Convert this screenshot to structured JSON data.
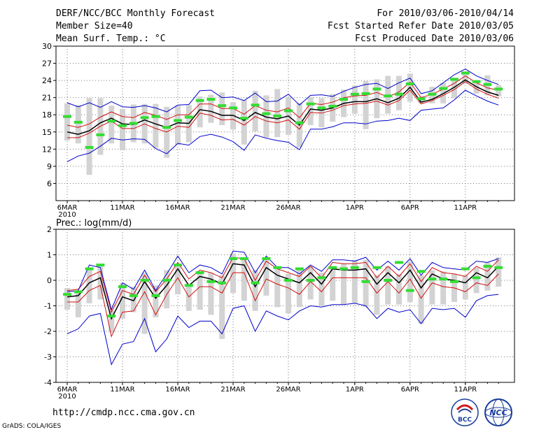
{
  "header": {
    "title": "DERF/NCC/BCC Monthly Forecast",
    "member": "Member Size=40",
    "variable": "Mean Surf. Temp.: °C",
    "period": "For 2010/03/06-2010/04/14",
    "started": "Fcst Started Refer Date 2010/03/05",
    "produced": "Fcst Produced Date 2010/03/06"
  },
  "footer": {
    "url": "http://cmdp.ncc.cma.gov.cn",
    "grads": "GrADS: COLA/IGES",
    "logo_left": "BCC",
    "logo_right": "NCC"
  },
  "colors": {
    "mean": "#000000",
    "spread": "#d01010",
    "envelope": "#0000cc",
    "box": "#d3d3d3",
    "marker": "#33dd33"
  },
  "chart_data": [
    {
      "type": "line",
      "title": "Mean Surf. Temp.: °C",
      "xlabel": "",
      "ylabel": "",
      "ylim": [
        3,
        30
      ],
      "yticks": [
        6,
        9,
        12,
        15,
        18,
        21,
        24,
        27,
        30
      ],
      "grid": true,
      "xticks": [
        {
          "day": 1,
          "label": "6MAR",
          "sub": "2010"
        },
        {
          "day": 6,
          "label": "11MAR"
        },
        {
          "day": 11,
          "label": "16MAR"
        },
        {
          "day": 16,
          "label": "21MAR"
        },
        {
          "day": 21,
          "label": "26MAR"
        },
        {
          "day": 27,
          "label": "1APR"
        },
        {
          "day": 32,
          "label": "6APR"
        },
        {
          "day": 37,
          "label": "11APR"
        }
      ],
      "x": [
        1,
        2,
        3,
        4,
        5,
        6,
        7,
        8,
        9,
        10,
        11,
        12,
        13,
        14,
        15,
        16,
        17,
        18,
        19,
        20,
        21,
        22,
        23,
        24,
        25,
        26,
        27,
        28,
        29,
        30,
        31,
        32,
        33,
        34,
        35,
        36,
        37,
        38,
        39,
        40
      ],
      "series": [
        {
          "name": "ensemble mean",
          "values": [
            15.0,
            14.6,
            15.2,
            16.6,
            17.4,
            16.4,
            16.3,
            17.1,
            16.4,
            15.8,
            16.6,
            16.5,
            18.9,
            18.6,
            17.9,
            17.9,
            17.0,
            18.4,
            17.6,
            17.3,
            17.8,
            16.2,
            19.0,
            18.8,
            19.2,
            20.0,
            20.3,
            20.3,
            20.8,
            20.1,
            20.9,
            22.8,
            20.2,
            20.7,
            21.7,
            22.8,
            24.1,
            22.9,
            22.0,
            21.4
          ]
        },
        {
          "name": "upper spread",
          "values": [
            16.2,
            15.8,
            16.4,
            17.6,
            18.5,
            17.7,
            17.5,
            18.4,
            17.9,
            17.2,
            18.0,
            18.0,
            19.9,
            19.9,
            19.1,
            19.1,
            18.1,
            19.6,
            18.8,
            18.5,
            19.2,
            17.5,
            20.0,
            19.8,
            20.2,
            21.0,
            21.3,
            21.4,
            21.9,
            21.1,
            22.0,
            23.7,
            21.0,
            21.6,
            22.5,
            23.5,
            24.8,
            23.6,
            22.7,
            22.3
          ]
        },
        {
          "name": "lower spread",
          "values": [
            14.0,
            14.0,
            14.8,
            16.0,
            16.9,
            15.6,
            15.6,
            16.4,
            15.6,
            15.0,
            16.0,
            15.8,
            18.3,
            17.9,
            17.1,
            17.2,
            16.2,
            17.7,
            16.9,
            16.6,
            17.1,
            15.5,
            18.4,
            18.3,
            18.8,
            19.6,
            19.9,
            20.0,
            20.4,
            19.7,
            20.5,
            22.3,
            19.9,
            20.5,
            21.4,
            22.4,
            23.8,
            22.5,
            21.6,
            20.9
          ]
        },
        {
          "name": "ensemble max",
          "values": [
            20.1,
            19.4,
            20.1,
            19.3,
            20.3,
            19.4,
            19.3,
            19.6,
            19.2,
            18.5,
            19.7,
            19.8,
            22.2,
            22.3,
            21.0,
            21.1,
            20.5,
            21.8,
            20.3,
            20.4,
            21.6,
            19.7,
            21.4,
            21.5,
            21.2,
            22.1,
            22.8,
            23.3,
            23.5,
            22.6,
            23.6,
            24.4,
            21.7,
            22.2,
            23.6,
            25.0,
            26.0,
            24.8,
            24.0,
            23.3
          ]
        },
        {
          "name": "ensemble min",
          "values": [
            9.8,
            10.8,
            11.3,
            12.5,
            13.9,
            13.6,
            13.8,
            13.7,
            12.1,
            11.2,
            13.0,
            12.7,
            14.2,
            14.6,
            14.1,
            13.3,
            11.8,
            14.5,
            13.9,
            13.5,
            13.2,
            11.9,
            15.5,
            15.5,
            15.9,
            16.6,
            16.6,
            16.4,
            16.9,
            17.0,
            17.4,
            17.0,
            18.8,
            19.0,
            19.2,
            20.6,
            22.3,
            21.3,
            20.4,
            19.7
          ]
        },
        {
          "name": "forecast",
          "values": [
            17.7,
            16.7,
            12.3,
            14.5,
            16.9,
            16.1,
            16.5,
            17.5,
            17.7,
            15.8,
            17.0,
            17.6,
            20.5,
            20.7,
            19.6,
            19.2,
            17.4,
            19.7,
            18.2,
            17.8,
            18.7,
            16.6,
            19.9,
            19.2,
            19.5,
            20.7,
            21.6,
            21.7,
            22.5,
            21.3,
            21.6,
            23.4,
            20.8,
            21.6,
            22.6,
            24.2,
            25.3,
            23.8,
            23.3,
            22.5
          ]
        }
      ],
      "boxes": [
        [
          13.5,
          20.0
        ],
        [
          13.0,
          19.7
        ],
        [
          7.5,
          20.9
        ],
        [
          11.0,
          20.9
        ],
        [
          13.0,
          19.6
        ],
        [
          11.8,
          19.0
        ],
        [
          13.2,
          19.8
        ],
        [
          13.0,
          19.9
        ],
        [
          12.2,
          19.9
        ],
        [
          10.5,
          19.4
        ],
        [
          12.7,
          19.6
        ],
        [
          13.2,
          19.7
        ],
        [
          15.8,
          21.2
        ],
        [
          16.6,
          21.5
        ],
        [
          16.2,
          21.9
        ],
        [
          15.4,
          20.2
        ],
        [
          12.8,
          20.6
        ],
        [
          15.1,
          22.2
        ],
        [
          14.0,
          21.4
        ],
        [
          14.1,
          22.5
        ],
        [
          14.5,
          21.1
        ],
        [
          12.3,
          20.1
        ],
        [
          16.2,
          21.1
        ],
        [
          15.8,
          20.9
        ],
        [
          16.8,
          21.6
        ],
        [
          17.6,
          22.4
        ],
        [
          18.2,
          23.1
        ],
        [
          15.5,
          23.9
        ],
        [
          17.4,
          24.2
        ],
        [
          18.2,
          24.8
        ],
        [
          18.8,
          24.8
        ],
        [
          20.3,
          25.2
        ],
        [
          20.0,
          21.2
        ],
        [
          20.0,
          22.9
        ],
        [
          20.0,
          23.6
        ],
        [
          20.9,
          24.5
        ],
        [
          23.4,
          25.6
        ],
        [
          21.7,
          24.0
        ],
        [
          21.4,
          24.9
        ],
        [
          21.2,
          23.2
        ]
      ]
    },
    {
      "type": "line",
      "title": "Prec.: log(mm/d)",
      "xlabel": "",
      "ylabel": "",
      "ylim": [
        -4,
        2
      ],
      "yticks": [
        -4,
        -3,
        -2,
        -1,
        0,
        1,
        2
      ],
      "grid": true,
      "xticks": [
        {
          "day": 1,
          "label": "6MAR",
          "sub": "2010"
        },
        {
          "day": 6,
          "label": "11MAR"
        },
        {
          "day": 11,
          "label": "16MAR"
        },
        {
          "day": 16,
          "label": "21MAR"
        },
        {
          "day": 21,
          "label": "26MAR"
        },
        {
          "day": 27,
          "label": "1APR"
        },
        {
          "day": 32,
          "label": "6APR"
        },
        {
          "day": 37,
          "label": "11APR"
        }
      ],
      "x": [
        1,
        2,
        3,
        4,
        5,
        6,
        7,
        8,
        9,
        10,
        11,
        12,
        13,
        14,
        15,
        16,
        17,
        18,
        19,
        20,
        21,
        22,
        23,
        24,
        25,
        26,
        27,
        28,
        29,
        30,
        31,
        32,
        33,
        34,
        35,
        36,
        37,
        38,
        39,
        40
      ],
      "series": [
        {
          "name": "ensemble mean",
          "values": [
            -0.65,
            -0.6,
            -0.1,
            0.1,
            -1.5,
            -0.65,
            -0.8,
            -0.05,
            -0.7,
            -0.2,
            0.45,
            -0.2,
            0.15,
            0.05,
            -0.15,
            0.65,
            0.6,
            -0.25,
            0.5,
            0.2,
            0.05,
            -0.1,
            0.3,
            -0.15,
            0.45,
            0.4,
            0.4,
            0.45,
            -0.15,
            0.3,
            -0.1,
            0.4,
            -0.3,
            0.25,
            0.05,
            0.0,
            -0.1,
            0.3,
            0.1,
            0.55
          ]
        },
        {
          "name": "upper spread",
          "values": [
            -0.4,
            -0.35,
            0.15,
            0.35,
            -1.25,
            -0.4,
            -0.55,
            0.2,
            -0.45,
            0.05,
            0.7,
            0.05,
            0.4,
            0.3,
            0.1,
            0.9,
            0.85,
            0.0,
            0.75,
            0.45,
            0.3,
            0.15,
            0.55,
            0.1,
            0.7,
            0.65,
            0.65,
            0.7,
            0.1,
            0.55,
            0.15,
            0.65,
            -0.05,
            0.5,
            0.3,
            0.25,
            0.15,
            0.55,
            0.35,
            0.8
          ]
        },
        {
          "name": "lower spread",
          "values": [
            -0.85,
            -0.85,
            -0.4,
            -0.2,
            -2.2,
            -1.25,
            -1.2,
            -0.45,
            -1.35,
            -0.55,
            0.1,
            -0.65,
            -0.25,
            -0.25,
            -0.5,
            0.3,
            0.3,
            -0.8,
            0.05,
            -0.15,
            -0.3,
            -0.55,
            -0.05,
            -0.45,
            0.1,
            0.1,
            0.1,
            0.1,
            -0.5,
            -0.05,
            -0.5,
            0.05,
            -0.7,
            -0.1,
            -0.25,
            -0.3,
            -0.45,
            -0.1,
            -0.2,
            0.25
          ]
        },
        {
          "name": "ensemble max",
          "values": [
            -0.45,
            -0.4,
            0.6,
            0.5,
            -1.15,
            -0.1,
            -0.35,
            0.4,
            -0.4,
            0.25,
            0.95,
            0.3,
            0.6,
            0.5,
            0.25,
            1.15,
            1.1,
            0.3,
            0.95,
            0.5,
            0.5,
            0.25,
            0.6,
            0.35,
            0.8,
            0.8,
            0.75,
            0.9,
            0.4,
            0.75,
            0.4,
            0.85,
            0.2,
            0.7,
            0.5,
            0.45,
            0.4,
            0.75,
            0.7,
            0.85
          ]
        },
        {
          "name": "ensemble min",
          "values": [
            -2.1,
            -1.9,
            -1.4,
            -1.3,
            -3.3,
            -2.5,
            -2.4,
            -1.5,
            -2.8,
            -2.3,
            -1.4,
            -1.85,
            -1.6,
            -1.6,
            -2.1,
            -1.1,
            -1.0,
            -2.0,
            -1.2,
            -1.4,
            -1.55,
            -1.2,
            -1.0,
            -1.05,
            -0.95,
            -0.95,
            -0.9,
            -1.0,
            -1.5,
            -1.1,
            -1.25,
            -1.15,
            -1.7,
            -1.1,
            -1.15,
            -1.1,
            -1.45,
            -0.8,
            -0.6,
            -0.55
          ]
        },
        {
          "name": "forecast",
          "values": [
            -0.55,
            -0.45,
            0.45,
            0.6,
            -1.4,
            -0.25,
            -0.6,
            0.0,
            -0.6,
            0.0,
            0.6,
            -0.2,
            0.3,
            -0.05,
            -0.1,
            0.85,
            0.85,
            -0.1,
            0.85,
            0.5,
            0.0,
            0.45,
            0.0,
            0.1,
            0.5,
            0.45,
            0.5,
            -0.05,
            0.5,
            0.0,
            0.7,
            -0.4,
            0.35,
            0.05,
            0.05,
            -0.05,
            0.45,
            0.1,
            0.55,
            0.5
          ]
        }
      ],
      "boxes": [
        [
          -1.15,
          -0.3
        ],
        [
          -1.45,
          -0.4
        ],
        [
          -0.9,
          0.5
        ],
        [
          -0.75,
          0.6
        ],
        [
          -2.05,
          -1.2
        ],
        [
          -1.5,
          -0.1
        ],
        [
          -1.25,
          -0.25
        ],
        [
          -2.1,
          0.3
        ],
        [
          -1.45,
          -0.2
        ],
        [
          -1.1,
          0.4
        ],
        [
          -0.55,
          0.6
        ],
        [
          -1.2,
          -0.2
        ],
        [
          -1.15,
          0.35
        ],
        [
          -1.35,
          0.3
        ],
        [
          -2.3,
          0.2
        ],
        [
          -0.5,
          1.05
        ],
        [
          -0.8,
          0.85
        ],
        [
          -1.2,
          0.4
        ],
        [
          -0.6,
          0.9
        ],
        [
          -1.05,
          0.55
        ],
        [
          -1.3,
          0.25
        ],
        [
          -1.05,
          0.45
        ],
        [
          -0.75,
          0.55
        ],
        [
          -1.0,
          0.3
        ],
        [
          -0.8,
          0.5
        ],
        [
          -0.95,
          0.65
        ],
        [
          -0.9,
          0.8
        ],
        [
          -1.05,
          0.8
        ],
        [
          -1.35,
          0.2
        ],
        [
          -0.95,
          0.55
        ],
        [
          -0.95,
          0.25
        ],
        [
          -0.85,
          0.75
        ],
        [
          -1.7,
          0.2
        ],
        [
          -0.95,
          0.4
        ],
        [
          -0.95,
          0.35
        ],
        [
          -0.85,
          0.25
        ],
        [
          -0.75,
          0.2
        ],
        [
          -0.5,
          0.5
        ],
        [
          -0.4,
          0.7
        ],
        [
          -0.25,
          0.9
        ]
      ]
    }
  ]
}
